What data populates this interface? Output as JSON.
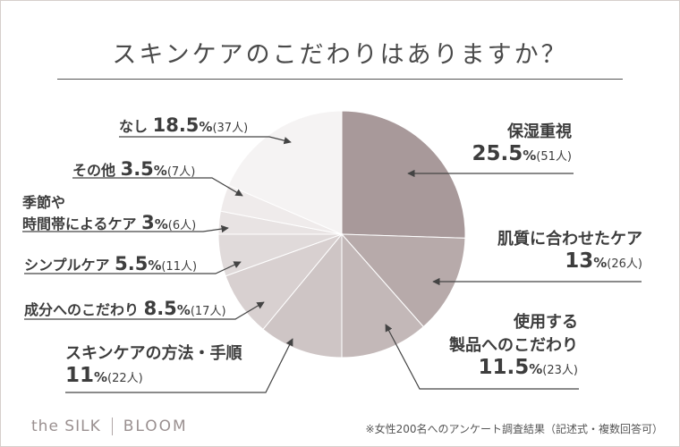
{
  "title": "スキンケアのこだわりはありますか？",
  "footnote": "※女性200名へのアンケート調査結果（記述式・複数回答可）",
  "brand": {
    "left": "the SILK",
    "right": "BLOOM"
  },
  "chart_data": {
    "type": "pie",
    "start": "12-o'clock",
    "direction": "clockwise",
    "slices": [
      {
        "label_lines": [
          "保湿重視"
        ],
        "percent": "25.5",
        "count": "51人",
        "value": 25.5,
        "color": "#a8999a"
      },
      {
        "label_lines": [
          "肌質に合わせたケア"
        ],
        "percent": "13",
        "count": "26人",
        "value": 13,
        "color": "#b7aaaa"
      },
      {
        "label_lines": [
          "使用する",
          "製品へのこだわり"
        ],
        "percent": "11.5",
        "count": "23人",
        "value": 11.5,
        "color": "#c3b8b8"
      },
      {
        "label_lines": [
          "スキンケアの方法・手順"
        ],
        "percent": "11",
        "count": "22人",
        "value": 11,
        "color": "#cec5c5"
      },
      {
        "label_lines": [
          "成分へのこだわり"
        ],
        "percent": "8.5",
        "count": "17人",
        "value": 8.5,
        "color": "#d8d0d0"
      },
      {
        "label_lines": [
          "シンプルケア"
        ],
        "percent": "5.5",
        "count": "11人",
        "value": 5.5,
        "color": "#e0dada"
      },
      {
        "label_lines": [
          "季節や",
          "時間帯によるケア"
        ],
        "percent": "3",
        "count": "6人",
        "value": 3,
        "color": "#e8e3e3"
      },
      {
        "label_lines": [
          "その他"
        ],
        "percent": "3.5",
        "count": "7人",
        "value": 3.5,
        "color": "#efebeb"
      },
      {
        "label_lines": [
          "なし"
        ],
        "percent": "18.5",
        "count": "37人",
        "value": 18.5,
        "color": "#f5f3f3"
      }
    ]
  }
}
